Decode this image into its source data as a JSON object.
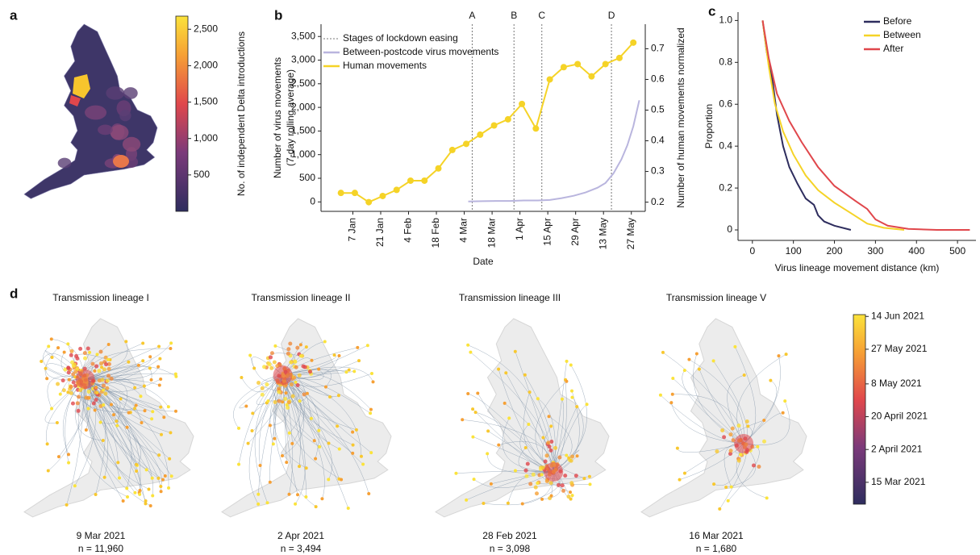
{
  "chart_data": [
    {
      "type": "map",
      "panel": "a",
      "colorbar": {
        "label": "No. of independent Delta introductions",
        "lim": [
          0,
          2680
        ],
        "ticks": [
          500,
          {
            "value": 1000,
            "label": "1,000"
          },
          {
            "value": 1500,
            "label": "1,500"
          },
          {
            "value": 2000,
            "label": "2,000"
          },
          {
            "value": 2500,
            "label": "2,500"
          }
        ]
      }
    },
    {
      "type": "line",
      "panel": "b",
      "xlabel": "Date",
      "ylabel": [
        "Number of virus movements",
        "(7-day rolling average)"
      ],
      "y2label": "Number of human movements normalized",
      "xlim": [
        -9,
        154
      ],
      "ylim": [
        -200,
        3760
      ],
      "y2lim": [
        0.17,
        0.78
      ],
      "xticks": [
        {
          "value": 7,
          "label": "7 Jan"
        },
        {
          "value": 21,
          "label": "21 Jan"
        },
        {
          "value": 35,
          "label": "4 Feb"
        },
        {
          "value": 49,
          "label": "18 Feb"
        },
        {
          "value": 63,
          "label": "4 Mar"
        },
        {
          "value": 77,
          "label": "18 Mar"
        },
        {
          "value": 91,
          "label": "1 Apr"
        },
        {
          "value": 105,
          "label": "15 Apr"
        },
        {
          "value": 119,
          "label": "29 Apr"
        },
        {
          "value": 133,
          "label": "13 May"
        },
        {
          "value": 147,
          "label": "27 May"
        }
      ],
      "yticks": [
        0,
        500,
        {
          "value": 1000,
          "label": "1,000"
        },
        {
          "value": 1500,
          "label": "1,500"
        },
        {
          "value": 2000,
          "label": "2,000"
        },
        {
          "value": 2500,
          "label": "2,500"
        },
        {
          "value": 3000,
          "label": "3,000"
        },
        {
          "value": 3500,
          "label": "3,500"
        }
      ],
      "y2ticks": [
        0.2,
        0.3,
        0.4,
        0.5,
        0.6,
        0.7
      ],
      "vlines": {
        "name": "Stages of lockdown easing",
        "color": "#777777",
        "lines": [
          {
            "label": "A",
            "x": 67
          },
          {
            "label": "B",
            "x": 88
          },
          {
            "label": "C",
            "x": 102
          },
          {
            "label": "D",
            "x": 137
          }
        ]
      },
      "series": [
        {
          "name": "Between-postcode virus movements",
          "color": "#b9b5de",
          "x": [
            65,
            72,
            79,
            86,
            93,
            100,
            106,
            112,
            118,
            124,
            130,
            134,
            138,
            142,
            145,
            148,
            151
          ],
          "values": [
            10,
            15,
            20,
            20,
            30,
            30,
            40,
            80,
            130,
            200,
            300,
            400,
            600,
            900,
            1200,
            1600,
            2150
          ]
        },
        {
          "name": "Human movements",
          "color": "#f5d327",
          "axis": "y2",
          "markers": true,
          "x": [
            1,
            8,
            15,
            22,
            29,
            36,
            43,
            50,
            57,
            64,
            71,
            78,
            85,
            92,
            99,
            106,
            113,
            120,
            127,
            134,
            141,
            148
          ],
          "values": [
            0.23,
            0.23,
            0.2,
            0.22,
            0.24,
            0.27,
            0.27,
            0.31,
            0.37,
            0.39,
            0.42,
            0.45,
            0.47,
            0.52,
            0.44,
            0.6,
            0.64,
            0.65,
            0.61,
            0.65,
            0.67,
            0.72
          ]
        }
      ]
    },
    {
      "type": "line",
      "panel": "c",
      "xlabel": "Virus lineage movement distance (km)",
      "ylabel": "Proportion",
      "xlim": [
        -35,
        545
      ],
      "ylim": [
        -0.05,
        1.04
      ],
      "legend": "upper right",
      "xticks": [
        0,
        100,
        200,
        300,
        400,
        500
      ],
      "yticks": [
        0,
        0.2,
        0.4,
        0.6,
        0.8,
        {
          "value": 1,
          "label": "1.0"
        }
      ],
      "series": [
        {
          "name": "Before",
          "color": "#2e2d5e",
          "x": [
            25,
            35,
            50,
            60,
            75,
            90,
            110,
            130,
            150,
            160,
            175,
            200,
            240
          ],
          "values": [
            1,
            0.85,
            0.7,
            0.55,
            0.4,
            0.3,
            0.22,
            0.15,
            0.12,
            0.07,
            0.04,
            0.02,
            0
          ]
        },
        {
          "name": "Between",
          "color": "#f5d327",
          "x": [
            25,
            40,
            55,
            75,
            100,
            130,
            160,
            200,
            240,
            280,
            320,
            370
          ],
          "values": [
            1,
            0.78,
            0.6,
            0.47,
            0.36,
            0.26,
            0.19,
            0.13,
            0.08,
            0.03,
            0.01,
            0
          ]
        },
        {
          "name": "After",
          "color": "#e0474c",
          "x": [
            25,
            40,
            60,
            90,
            120,
            160,
            200,
            250,
            280,
            300,
            330,
            380,
            450,
            530
          ],
          "values": [
            1,
            0.82,
            0.65,
            0.52,
            0.42,
            0.3,
            0.21,
            0.14,
            0.1,
            0.05,
            0.02,
            0.005,
            0,
            0
          ]
        }
      ]
    },
    {
      "type": "map",
      "panel": "d",
      "maps": [
        {
          "title": "Transmission lineage I",
          "date": "9 Mar 2021",
          "n": "n = 11,960"
        },
        {
          "title": "Transmission lineage II",
          "date": "2 Apr 2021",
          "n": "n = 3,494"
        },
        {
          "title": "Transmission lineage III",
          "date": "28 Feb 2021",
          "n": "n = 3,098"
        },
        {
          "title": "Transmission lineage V",
          "date": "16 Mar 2021",
          "n": "n = 1,680"
        }
      ],
      "colorbar": {
        "lim": [
          "2021-03-03",
          "2021-06-15"
        ],
        "ticks": [
          {
            "value": "2021-06-14",
            "label": "14 Jun 2021"
          },
          {
            "value": "2021-05-27",
            "label": "27 May 2021"
          },
          {
            "value": "2021-05-08",
            "label": "8 May 2021"
          },
          {
            "value": "2021-04-20",
            "label": "20 April 2021"
          },
          {
            "value": "2021-04-02",
            "label": "2 April 2021"
          },
          {
            "value": "2021-03-15",
            "label": "15 Mar 2021"
          }
        ]
      }
    }
  ]
}
